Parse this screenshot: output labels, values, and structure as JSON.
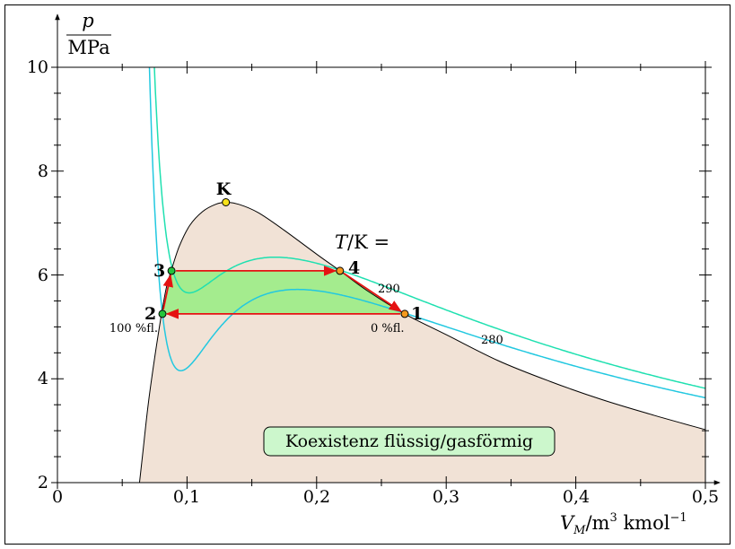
{
  "diagram": {
    "y_axis": {
      "numerator": "p",
      "denominator": "MPa",
      "ticks": [
        "2",
        "4",
        "6",
        "8",
        "10"
      ],
      "range": [
        2,
        10
      ]
    },
    "x_axis": {
      "title_main": "V",
      "title_sub": "M",
      "title_rest": "/m",
      "title_sup1": "3",
      "title_unit2": " kmol",
      "title_sup2": "−1",
      "ticks": [
        "0",
        "0,1",
        "0,2",
        "0,3",
        "0,4",
        "0,5"
      ],
      "range": [
        0,
        0.5
      ]
    },
    "temperature_header_main": "T",
    "temperature_header_rest": "/K =",
    "isotherms": [
      {
        "label": "290",
        "color": "#1fe0b0"
      },
      {
        "label": "280",
        "color": "#22c8e0"
      }
    ],
    "critical_point_label": "K",
    "points": [
      {
        "label": "1",
        "x": 0.268,
        "y": 5.25,
        "color": "#f59a1e"
      },
      {
        "label": "2",
        "x": 0.081,
        "y": 5.25,
        "color": "#22c43a"
      },
      {
        "label": "3",
        "x": 0.088,
        "y": 6.08,
        "color": "#22c43a"
      },
      {
        "label": "4",
        "x": 0.218,
        "y": 6.08,
        "color": "#f59a1e"
      }
    ],
    "quality_left": "100 %fl.",
    "quality_right": "0 %fl.",
    "region_label": "Koexistenz flüssig/gasförmig",
    "colors": {
      "coexistence_fill": "#f1e2d6",
      "cycle_fill": "#a4ec8e",
      "cycle_arrows": "#e51212",
      "label_box_fill": "#ccf7cc",
      "critical_point": "#f7e21a"
    }
  }
}
